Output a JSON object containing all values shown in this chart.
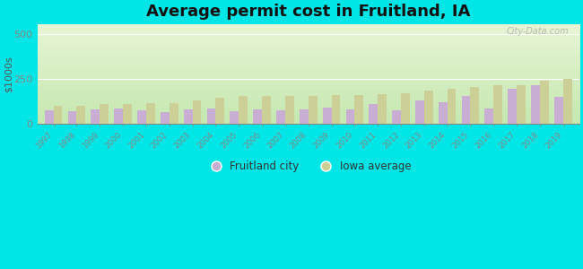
{
  "title": "Average permit cost in Fruitland, IA",
  "ylabel": "$1000s",
  "years": [
    1997,
    1998,
    1999,
    2000,
    2001,
    2002,
    2003,
    2004,
    2005,
    2006,
    2007,
    2008,
    2009,
    2010,
    2011,
    2012,
    2013,
    2014,
    2015,
    2016,
    2017,
    2018,
    2019
  ],
  "fruitland": [
    75,
    70,
    80,
    85,
    75,
    65,
    80,
    85,
    70,
    80,
    75,
    80,
    90,
    80,
    110,
    75,
    130,
    120,
    155,
    85,
    195,
    215,
    150
  ],
  "iowa_avg": [
    100,
    100,
    110,
    110,
    115,
    115,
    130,
    145,
    155,
    155,
    155,
    155,
    160,
    160,
    165,
    170,
    185,
    195,
    205,
    215,
    215,
    240,
    250
  ],
  "fruitland_color": "#c9aed4",
  "iowa_color": "#cccf96",
  "ylim": [
    0,
    560
  ],
  "yticks": [
    0,
    250,
    500
  ],
  "fig_bg_color": "#00e5e5",
  "plot_bg_color_top": "#d8efc8",
  "plot_bg_color_bottom": "#e8f5d8",
  "title_fontsize": 13,
  "bar_width": 0.38,
  "watermark": "City-Data.com",
  "legend_label1": "Fruitland city",
  "legend_label2": "Iowa average"
}
